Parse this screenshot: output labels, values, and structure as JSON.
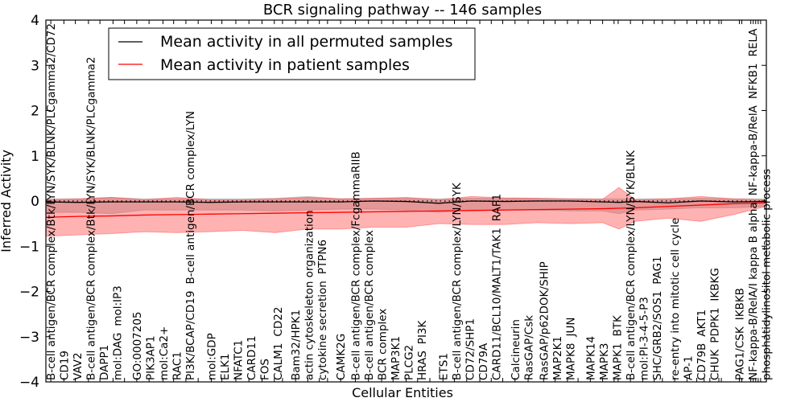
{
  "chart_data": {
    "type": "line",
    "title": "BCR signaling pathway -- 146 samples",
    "xlabel": "Cellular Entities",
    "ylabel": "Inferred Activity",
    "ylim": [
      -4,
      4
    ],
    "xlim": [
      0,
      88
    ],
    "yticks": [
      -4,
      -3,
      -2,
      -1,
      0,
      1,
      2,
      3,
      4
    ],
    "legend": {
      "placement": "top-left",
      "entries": [
        {
          "label": "Mean activity in all permuted samples",
          "color": "#000000"
        },
        {
          "label": "Mean activity in patient samples",
          "color": "#ff0000"
        }
      ]
    },
    "colors": {
      "permuted": "#000000",
      "patient": "#ff0000",
      "permuted_band": "#808080",
      "patient_band": "#ff0000"
    },
    "x": [
      0,
      4,
      8,
      12,
      16,
      20,
      24,
      28,
      32,
      36,
      40,
      44,
      48,
      52,
      56,
      60,
      64,
      68,
      70,
      72,
      76,
      80,
      84,
      88
    ],
    "series": [
      {
        "name": "Mean activity in all permuted samples",
        "mean": [
          -0.02,
          -0.03,
          -0.02,
          -0.02,
          -0.02,
          -0.03,
          -0.02,
          -0.02,
          -0.02,
          -0.02,
          0.0,
          -0.01,
          -0.05,
          0.0,
          -0.01,
          0.0,
          0.0,
          -0.02,
          -0.03,
          -0.01,
          -0.04,
          0.0,
          -0.02,
          -0.01
        ],
        "upper": [
          0.05,
          0.05,
          0.08,
          0.05,
          0.05,
          0.05,
          0.05,
          0.06,
          0.1,
          0.05,
          0.06,
          0.06,
          0.05,
          0.06,
          0.06,
          0.06,
          0.05,
          0.05,
          0.05,
          0.05,
          0.05,
          0.06,
          0.05,
          0.05
        ],
        "lower": [
          -0.25,
          -0.25,
          -0.28,
          -0.2,
          -0.2,
          -0.2,
          -0.2,
          -0.22,
          -0.2,
          -0.18,
          -0.18,
          -0.2,
          -0.25,
          -0.2,
          -0.2,
          -0.2,
          -0.22,
          -0.22,
          -0.28,
          -0.2,
          -0.18,
          -0.15,
          -0.15,
          -0.12
        ]
      },
      {
        "name": "Mean activity in patient samples",
        "mean": [
          -0.36,
          -0.34,
          -0.33,
          -0.31,
          -0.3,
          -0.29,
          -0.28,
          -0.27,
          -0.26,
          -0.25,
          -0.24,
          -0.23,
          -0.22,
          -0.21,
          -0.2,
          -0.19,
          -0.18,
          -0.17,
          -0.16,
          -0.15,
          -0.12,
          -0.09,
          -0.06,
          -0.04
        ],
        "upper": [
          0.03,
          0.05,
          0.08,
          0.03,
          0.08,
          0.03,
          0.03,
          0.05,
          0.08,
          0.05,
          0.06,
          0.08,
          0.03,
          0.1,
          0.07,
          0.06,
          0.05,
          0.04,
          0.3,
          0.03,
          0.05,
          0.1,
          0.05,
          0.03
        ],
        "lower": [
          -0.78,
          -0.75,
          -0.72,
          -0.68,
          -0.7,
          -0.68,
          -0.65,
          -0.7,
          -0.62,
          -0.62,
          -0.58,
          -0.58,
          -0.5,
          -0.52,
          -0.52,
          -0.48,
          -0.5,
          -0.48,
          -0.62,
          -0.45,
          -0.38,
          -0.45,
          -0.3,
          -0.12
        ]
      }
    ],
    "x_ticks": [
      {
        "pos": 0.6,
        "label": "B-cell antigen/BCR complex/Btk/LYN/SYK/BLNK/PLCgamma2/CD72"
      },
      {
        "pos": 2.2,
        "label": "CD19"
      },
      {
        "pos": 3.6,
        "label": "VAV2"
      },
      {
        "pos": 5.2,
        "label": "B-cell antigen/BCR complex/Btk/LYN/SYK/BLNK/PLCgamma2"
      },
      {
        "pos": 6.6,
        "label": "DAPP1"
      },
      {
        "pos": 8.2,
        "label": "mol:DAG"
      },
      {
        "pos": 9.6,
        "label": "mol:IP3"
      },
      {
        "pos": 11.1,
        "label": "GO:0007205"
      },
      {
        "pos": 12.6,
        "label": "PIK3AP1"
      },
      {
        "pos": 14.3,
        "label": "mol:Ca2+"
      },
      {
        "pos": 15.6,
        "label": "RAC1"
      },
      {
        "pos": 17.1,
        "label": "PI3K/BCAP/CD19"
      },
      {
        "pos": 18.6,
        "label": "B-cell antigen/BCR complex/LYN"
      },
      {
        "pos": 20.2,
        "label": "mol:GDP"
      },
      {
        "pos": 21.5,
        "label": "ELK1"
      },
      {
        "pos": 23.2,
        "label": "NFATC1"
      },
      {
        "pos": 24.8,
        "label": "CARD11"
      },
      {
        "pos": 26.4,
        "label": "FOS"
      },
      {
        "pos": 27.9,
        "label": "CALM1"
      },
      {
        "pos": 28.9,
        "label": "CD22"
      },
      {
        "pos": 30.5,
        "label": "Bam32/HPK1"
      },
      {
        "pos": 32.0,
        "label": "actin cytoskeleton organization"
      },
      {
        "pos": 33.4,
        "label": "cytokine secretion"
      },
      {
        "pos": 34.4,
        "label": "PTPN6"
      },
      {
        "pos": 36.0,
        "label": "CAMK2G"
      },
      {
        "pos": 37.8,
        "label": "B-cell antigen/BCR complex/FcgammaRIIB"
      },
      {
        "pos": 39.4,
        "label": "B-cell antigen/BCR complex"
      },
      {
        "pos": 41.0,
        "label": "BCR complex"
      },
      {
        "pos": 42.4,
        "label": "MAP3K1"
      },
      {
        "pos": 44.0,
        "label": "PLCG2"
      },
      {
        "pos": 45.4,
        "label": "HRAS"
      },
      {
        "pos": 46.9,
        "label": "PI3K"
      },
      {
        "pos": 48.5,
        "label": "ETS1"
      },
      {
        "pos": 49.9,
        "label": "B-cell antigen/BCR complex/LYN/SYK"
      },
      {
        "pos": 51.4,
        "label": "CD72/SHP1"
      },
      {
        "pos": 53.0,
        "label": "CD79A"
      },
      {
        "pos": 54.4,
        "label": "CARD11/BCL10/MALT1/TAK1"
      },
      {
        "pos": 55.8,
        "label": "RAF1"
      },
      {
        "pos": 57.3,
        "label": "Calcineurin"
      },
      {
        "pos": 58.9,
        "label": "RasGAP/Csk"
      },
      {
        "pos": 60.8,
        "label": "RasGAP/p62DOK/SHIP"
      },
      {
        "pos": 62.2,
        "label": "MAP2K1"
      },
      {
        "pos": 63.7,
        "label": "MAPK8"
      },
      {
        "pos": 65.0,
        "label": "JUN"
      },
      {
        "pos": 66.5,
        "label": "MAPK14"
      },
      {
        "pos": 68.0,
        "label": "MAPK3"
      },
      {
        "pos": 69.4,
        "label": "MAPK1"
      },
      {
        "pos": 69.9,
        "label": "BTK"
      },
      {
        "pos": 71.4,
        "label": "B-cell antigen/BCR complex/LYN/SYK/BLNK"
      },
      {
        "pos": 72.9,
        "label": "mol:PI-3-4-5-P3"
      },
      {
        "pos": 74.3,
        "label": "SHC/GRB2/SOS1"
      },
      {
        "pos": 75.3,
        "label": "PAG1"
      },
      {
        "pos": 76.8,
        "label": "re-entry into mitotic cell cycle"
      },
      {
        "pos": 78.3,
        "label": "AP-1"
      },
      {
        "pos": 79.5,
        "label": "CD79B"
      },
      {
        "pos": 80.4,
        "label": "AKT1"
      },
      {
        "pos": 81.1,
        "label": "CHUK"
      },
      {
        "pos": 82.2,
        "label": "PDPK1"
      },
      {
        "pos": 82.5,
        "label": "IKBKG"
      },
      {
        "pos": 84.7,
        "label": "PAG1/CSK"
      },
      {
        "pos": 85.0,
        "label": "IKBKB"
      },
      {
        "pos": 86.1,
        "label": "NF-kappa-B/RelA/I kappa B alpha"
      },
      {
        "pos": 86.4,
        "label": "NF-kappa-B/RelA"
      },
      {
        "pos": 86.7,
        "label": "NFKB1"
      },
      {
        "pos": 87.0,
        "label": "RELA"
      },
      {
        "pos": 87.3,
        "label": "phosphatidylinositol metabolic process"
      }
    ]
  }
}
